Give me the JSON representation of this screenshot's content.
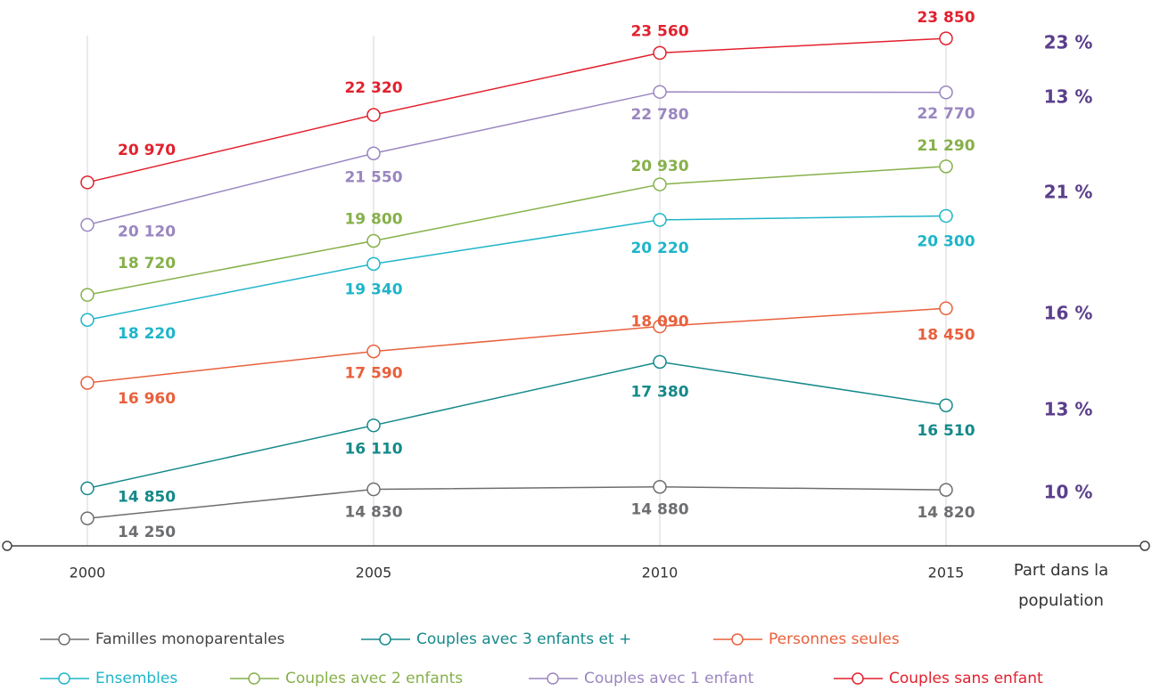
{
  "chart_data": {
    "type": "line",
    "categories": [
      "2000",
      "2005",
      "2010",
      "2015"
    ],
    "ylim": [
      13700,
      24000
    ],
    "share_title": "Part dans la population",
    "series": [
      {
        "name": "Familles monoparentales",
        "color": "#6d6e71",
        "values": [
          14250,
          14830,
          14880,
          14820
        ],
        "value_labels": [
          "14 250",
          "14 830",
          "14 880",
          "14 820"
        ],
        "share": 10,
        "share_label": "10 %"
      },
      {
        "name": "Couples avec 3 enfants et +",
        "color": "#15898a",
        "values": [
          14850,
          16110,
          17380,
          16510
        ],
        "value_labels": [
          "14 850",
          "16 110",
          "17 380",
          "16 510"
        ],
        "share": 13,
        "share_label": "13 %"
      },
      {
        "name": "Personnes seules",
        "color": "#e8603c",
        "values": [
          16960,
          17590,
          18090,
          18450
        ],
        "value_labels": [
          "16 960",
          "17 590",
          "18 090",
          "18 450"
        ],
        "share": 16,
        "share_label": "16 %"
      },
      {
        "name": "Ensembles",
        "color": "#1fb5c9",
        "values": [
          18220,
          19340,
          20220,
          20300
        ],
        "value_labels": [
          "18 220",
          "19 340",
          "20 220",
          "20 300"
        ]
      },
      {
        "name": "Couples avec 2 enfants",
        "color": "#86b04a",
        "values": [
          18720,
          19800,
          20930,
          21290
        ],
        "value_labels": [
          "18 720",
          "19 800",
          "20 930",
          "21 290"
        ],
        "share": 21,
        "share_label": "21 %"
      },
      {
        "name": "Couples avec 1 enfant",
        "color": "#9a86c0",
        "values": [
          20120,
          21550,
          22780,
          22770
        ],
        "value_labels": [
          "20 120",
          "21 550",
          "22 780",
          "22 770"
        ],
        "share": 13,
        "share_label": "13 %"
      },
      {
        "name": "Couples sans enfant",
        "color": "#e2212e",
        "values": [
          20970,
          22320,
          23560,
          23850
        ],
        "value_labels": [
          "20 970",
          "22 320",
          "23 560",
          "23 850"
        ],
        "share": 23,
        "share_label": "23 %"
      }
    ]
  }
}
